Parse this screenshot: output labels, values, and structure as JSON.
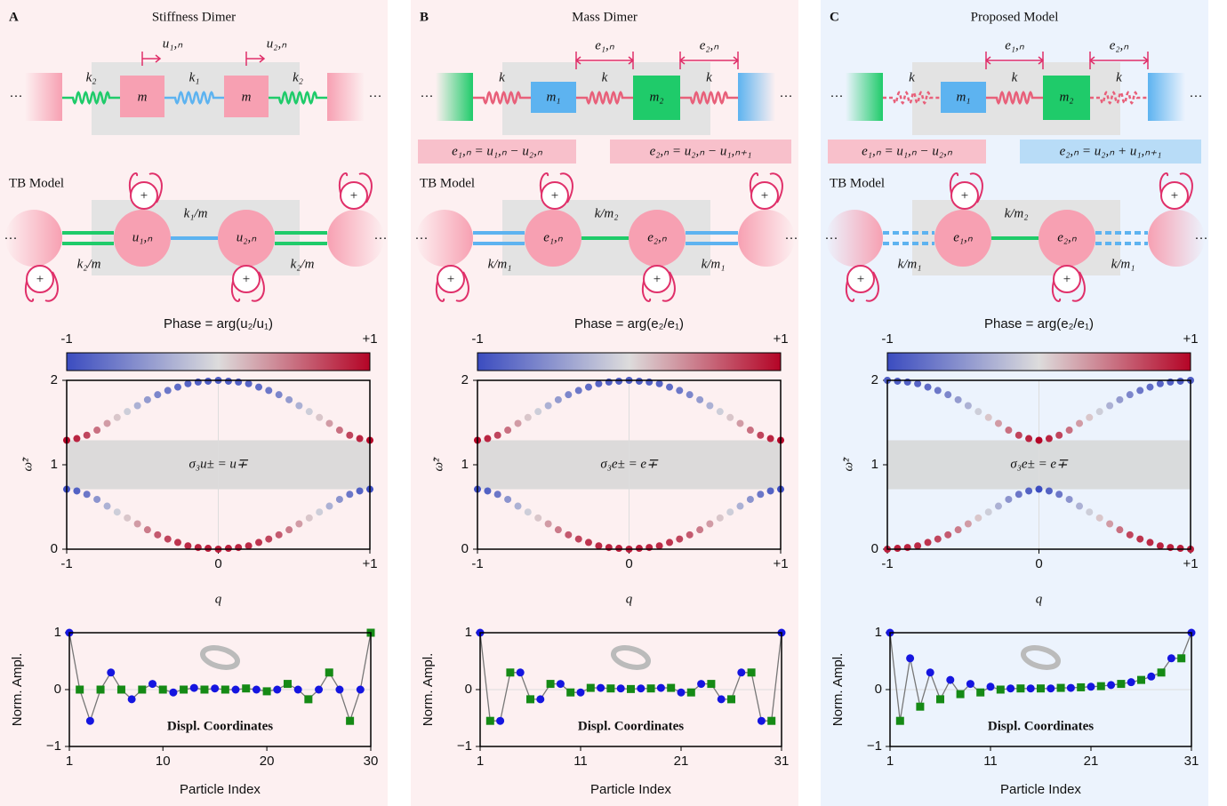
{
  "ellipsis": "···",
  "panels": [
    {
      "letter": "A",
      "title": "Stiffness Dimer",
      "springs": [
        "k₂",
        "k₁",
        "k₂"
      ],
      "masses": [
        "m",
        "m"
      ],
      "arrows": [
        "u₁,ₙ",
        "u₂,ₙ"
      ],
      "tb_label": "TB Model",
      "nodes": [
        "u₁,ₙ",
        "u₂,ₙ"
      ],
      "couplings": [
        "k₁/m",
        "k₂/m",
        "k₂/m"
      ],
      "onsite": [
        "+",
        "+",
        "+",
        "+"
      ]
    },
    {
      "letter": "B",
      "title": "Mass Dimer",
      "springs": [
        "k",
        "k",
        "k"
      ],
      "masses": [
        "m₁",
        "m₂"
      ],
      "arrows": [
        "e₁,ₙ",
        "e₂,ₙ"
      ],
      "equations": [
        "e₁,ₙ = u₁,ₙ − u₂,ₙ",
        "e₂,ₙ = u₂,ₙ − u₁,ₙ₊₁"
      ],
      "tb_label": "TB Model",
      "nodes": [
        "e₁,ₙ",
        "e₂,ₙ"
      ],
      "couplings": [
        "k/m₂",
        "k/m₁",
        "k/m₁"
      ],
      "onsite": [
        "+",
        "+",
        "+",
        "+"
      ]
    },
    {
      "letter": "C",
      "title": "Proposed Model",
      "springs": [
        "k",
        "k",
        "k"
      ],
      "masses": [
        "m₁",
        "m₂"
      ],
      "arrows": [
        "e₁,ₙ",
        "e₂,ₙ"
      ],
      "equations": [
        "e₁,ₙ = u₁,ₙ − u₂,ₙ",
        "e₂,ₙ = u₂,ₙ + u₁,ₙ₊₁"
      ],
      "tb_label": "TB Model",
      "nodes": [
        "e₁,ₙ",
        "e₂,ₙ"
      ],
      "couplings": [
        "k/m₂",
        "k/m₁",
        "k/m₁"
      ],
      "onsite": [
        "+",
        "+",
        "+",
        "+"
      ]
    }
  ],
  "chart_data": [
    {
      "type": "scatter",
      "colorbar_label": "Phase = arg(u₂/u₁)",
      "colorbar_ticks": [
        -1,
        {
          "value": 1,
          "label": "+1"
        }
      ],
      "colormap": [
        "#3b4cc0",
        "#dddcdc",
        "#b40426"
      ],
      "x": [
        -1,
        -0.933,
        -0.867,
        -0.8,
        -0.733,
        -0.667,
        -0.6,
        -0.533,
        -0.467,
        -0.4,
        -0.333,
        -0.267,
        -0.2,
        -0.133,
        -0.067,
        0,
        0.067,
        0.133,
        0.2,
        0.267,
        0.333,
        0.4,
        0.467,
        0.533,
        0.6,
        0.667,
        0.733,
        0.8,
        0.867,
        0.933,
        1
      ],
      "series": [
        {
          "values": [
            1.29,
            1.31,
            1.35,
            1.41,
            1.49,
            1.56,
            1.63,
            1.7,
            1.77,
            1.83,
            1.88,
            1.92,
            1.96,
            1.98,
            1.99,
            2.0,
            1.99,
            1.98,
            1.96,
            1.92,
            1.88,
            1.83,
            1.77,
            1.7,
            1.63,
            1.56,
            1.49,
            1.41,
            1.35,
            1.31,
            1.29
          ],
          "phase": [
            1,
            0.85,
            0.7,
            0.5,
            0.3,
            0.1,
            -0.1,
            -0.3,
            -0.45,
            -0.6,
            -0.7,
            -0.78,
            -0.83,
            -0.86,
            -0.88,
            -0.88,
            -0.88,
            -0.86,
            -0.83,
            -0.78,
            -0.7,
            -0.6,
            -0.45,
            -0.3,
            -0.1,
            0.1,
            0.3,
            0.5,
            0.7,
            0.85,
            1
          ]
        },
        {
          "values": [
            0.71,
            0.69,
            0.65,
            0.59,
            0.51,
            0.44,
            0.37,
            0.3,
            0.23,
            0.17,
            0.12,
            0.08,
            0.04,
            0.02,
            0.01,
            0.0,
            0.01,
            0.02,
            0.04,
            0.08,
            0.12,
            0.17,
            0.23,
            0.3,
            0.37,
            0.44,
            0.51,
            0.59,
            0.65,
            0.69,
            0.71
          ],
          "phase": [
            -1,
            -0.85,
            -0.7,
            -0.5,
            -0.3,
            -0.1,
            0.1,
            0.3,
            0.45,
            0.6,
            0.7,
            0.78,
            0.83,
            0.86,
            0.88,
            0.88,
            0.88,
            0.86,
            0.83,
            0.78,
            0.7,
            0.6,
            0.45,
            0.3,
            0.1,
            -0.1,
            -0.3,
            -0.5,
            -0.7,
            -0.85,
            -1
          ]
        }
      ],
      "band": [
        0.71,
        1.29
      ],
      "annotation": "σ₃u± = u∓",
      "xlim": [
        -1,
        1
      ],
      "ylim": [
        0,
        2
      ],
      "xticks": [
        -1,
        0,
        {
          "value": 1,
          "label": "+1"
        }
      ],
      "yticks": [
        0,
        1,
        2
      ],
      "xlabel": "q",
      "ylabel": "ω̃²",
      "grid": true
    },
    {
      "type": "line",
      "line_color": "#777777",
      "series": [
        {
          "color": "#1515e0",
          "marker": "circle",
          "x": [
            1,
            3,
            5,
            7,
            9,
            11,
            13,
            15,
            17,
            19,
            21,
            23,
            25,
            27,
            29
          ],
          "values": [
            1,
            -0.55,
            0.3,
            -0.17,
            0.1,
            -0.05,
            0.03,
            0.02,
            0,
            0,
            0,
            0,
            0,
            0,
            0
          ]
        },
        {
          "color": "#158a15",
          "marker": "square",
          "x": [
            2,
            4,
            6,
            8,
            10,
            12,
            14,
            16,
            18,
            20,
            22,
            24,
            26,
            28,
            30
          ],
          "values": [
            0,
            0,
            0,
            0,
            0,
            0,
            0,
            0,
            0.02,
            -0.03,
            0.1,
            -0.17,
            0.3,
            -0.55,
            1
          ]
        }
      ],
      "xlim": [
        1,
        30
      ],
      "ylim": [
        -1,
        1
      ],
      "xticks": [
        1,
        10,
        20,
        30
      ],
      "yticks": [
        {
          "value": -1,
          "label": "−1"
        },
        0,
        1
      ],
      "xlabel": "Particle Index",
      "ylabel": "Norm. Ampl.",
      "annotation": "Displ.  Coordinates",
      "grid": true
    },
    {
      "type": "scatter",
      "colorbar_label": "Phase = arg(e₂/e₁)",
      "colorbar_ticks": [
        -1,
        {
          "value": 1,
          "label": "+1"
        }
      ],
      "colormap": [
        "#3b4cc0",
        "#dddcdc",
        "#b40426"
      ],
      "x": [
        -1,
        -0.933,
        -0.867,
        -0.8,
        -0.733,
        -0.667,
        -0.6,
        -0.533,
        -0.467,
        -0.4,
        -0.333,
        -0.267,
        -0.2,
        -0.133,
        -0.067,
        0,
        0.067,
        0.133,
        0.2,
        0.267,
        0.333,
        0.4,
        0.467,
        0.533,
        0.6,
        0.667,
        0.733,
        0.8,
        0.867,
        0.933,
        1
      ],
      "series": [
        {
          "values": [
            1.29,
            1.31,
            1.35,
            1.41,
            1.49,
            1.56,
            1.63,
            1.7,
            1.77,
            1.83,
            1.88,
            1.92,
            1.96,
            1.98,
            1.99,
            2.0,
            1.99,
            1.98,
            1.96,
            1.92,
            1.88,
            1.83,
            1.77,
            1.7,
            1.63,
            1.56,
            1.49,
            1.41,
            1.35,
            1.31,
            1.29
          ],
          "phase": [
            1,
            0.85,
            0.7,
            0.5,
            0.3,
            0.1,
            -0.1,
            -0.3,
            -0.45,
            -0.6,
            -0.7,
            -0.78,
            -0.83,
            -0.86,
            -0.88,
            -0.88,
            -0.88,
            -0.86,
            -0.83,
            -0.78,
            -0.7,
            -0.6,
            -0.45,
            -0.3,
            -0.1,
            0.1,
            0.3,
            0.5,
            0.7,
            0.85,
            1
          ]
        },
        {
          "values": [
            0.71,
            0.69,
            0.65,
            0.59,
            0.51,
            0.44,
            0.37,
            0.3,
            0.23,
            0.17,
            0.12,
            0.08,
            0.04,
            0.02,
            0.01,
            0.0,
            0.01,
            0.02,
            0.04,
            0.08,
            0.12,
            0.17,
            0.23,
            0.3,
            0.37,
            0.44,
            0.51,
            0.59,
            0.65,
            0.69,
            0.71
          ],
          "phase": [
            -1,
            -0.85,
            -0.7,
            -0.5,
            -0.3,
            -0.1,
            0.1,
            0.3,
            0.45,
            0.6,
            0.7,
            0.78,
            0.83,
            0.86,
            0.88,
            0.88,
            0.88,
            0.86,
            0.83,
            0.78,
            0.7,
            0.6,
            0.45,
            0.3,
            0.1,
            -0.1,
            -0.3,
            -0.5,
            -0.7,
            -0.85,
            -1
          ]
        }
      ],
      "band": [
        0.71,
        1.29
      ],
      "annotation": "σ₃e± = e∓",
      "xlim": [
        -1,
        1
      ],
      "ylim": [
        0,
        2
      ],
      "xticks": [
        -1,
        0,
        {
          "value": 1,
          "label": "+1"
        }
      ],
      "yticks": [
        0,
        1,
        2
      ],
      "xlabel": "q",
      "ylabel": "ω̃²",
      "grid": true
    },
    {
      "type": "line",
      "line_color": "#777777",
      "series": [
        {
          "color": "#1515e0",
          "marker": "circle",
          "x": [
            1,
            3,
            5,
            7,
            9,
            11,
            13,
            15,
            17,
            19,
            21,
            23,
            25,
            27,
            29,
            31
          ],
          "values": [
            1,
            -0.55,
            0.3,
            -0.17,
            0.1,
            -0.05,
            0.03,
            0.02,
            0.02,
            0.03,
            -0.05,
            0.1,
            -0.17,
            0.3,
            -0.55,
            1
          ]
        },
        {
          "color": "#158a15",
          "marker": "square",
          "x": [
            2,
            4,
            6,
            8,
            10,
            12,
            14,
            16,
            18,
            20,
            22,
            24,
            26,
            28,
            30
          ],
          "values": [
            -0.55,
            0.3,
            -0.17,
            0.1,
            -0.05,
            0.03,
            0.02,
            0.01,
            0.02,
            0.03,
            -0.05,
            0.1,
            -0.17,
            0.3,
            -0.55
          ]
        }
      ],
      "xlim": [
        1,
        31
      ],
      "ylim": [
        -1,
        1
      ],
      "xticks": [
        1,
        11,
        21,
        31
      ],
      "yticks": [
        {
          "value": -1,
          "label": "−1"
        },
        0,
        1
      ],
      "xlabel": "Particle Index",
      "ylabel": "Norm. Ampl.",
      "annotation": "Displ.  Coordinates",
      "grid": true
    },
    {
      "type": "scatter",
      "colorbar_label": "Phase = arg(e₂/e₁)",
      "colorbar_ticks": [
        -1,
        {
          "value": 1,
          "label": "+1"
        }
      ],
      "colormap": [
        "#3b4cc0",
        "#dddcdc",
        "#b40426"
      ],
      "x": [
        -1,
        -0.933,
        -0.867,
        -0.8,
        -0.733,
        -0.667,
        -0.6,
        -0.533,
        -0.467,
        -0.4,
        -0.333,
        -0.267,
        -0.2,
        -0.133,
        -0.067,
        0,
        0.067,
        0.133,
        0.2,
        0.267,
        0.333,
        0.4,
        0.467,
        0.533,
        0.6,
        0.667,
        0.733,
        0.8,
        0.867,
        0.933,
        1
      ],
      "series": [
        {
          "values": [
            2.0,
            1.99,
            1.98,
            1.96,
            1.92,
            1.88,
            1.83,
            1.77,
            1.7,
            1.63,
            1.56,
            1.49,
            1.41,
            1.35,
            1.31,
            1.29,
            1.31,
            1.35,
            1.41,
            1.49,
            1.56,
            1.63,
            1.7,
            1.77,
            1.83,
            1.88,
            1.92,
            1.96,
            1.98,
            1.99,
            2.0
          ],
          "phase": [
            -0.88,
            -0.88,
            -0.86,
            -0.83,
            -0.78,
            -0.7,
            -0.6,
            -0.45,
            -0.3,
            -0.1,
            0.1,
            0.3,
            0.5,
            0.7,
            0.85,
            1,
            0.85,
            0.7,
            0.5,
            0.3,
            0.1,
            -0.1,
            -0.3,
            -0.45,
            -0.6,
            -0.7,
            -0.78,
            -0.83,
            -0.86,
            -0.88,
            -0.88
          ]
        },
        {
          "values": [
            0.0,
            0.01,
            0.02,
            0.04,
            0.08,
            0.12,
            0.17,
            0.23,
            0.3,
            0.37,
            0.44,
            0.51,
            0.59,
            0.65,
            0.69,
            0.71,
            0.69,
            0.65,
            0.59,
            0.51,
            0.44,
            0.37,
            0.3,
            0.23,
            0.17,
            0.12,
            0.08,
            0.04,
            0.02,
            0.01,
            0.0
          ],
          "phase": [
            0.88,
            0.88,
            0.86,
            0.83,
            0.78,
            0.7,
            0.6,
            0.45,
            0.3,
            0.1,
            -0.1,
            -0.3,
            -0.5,
            -0.7,
            -0.85,
            -1,
            -0.85,
            -0.7,
            -0.5,
            -0.3,
            -0.1,
            0.1,
            0.3,
            0.5,
            0.7,
            0.78,
            0.83,
            0.86,
            0.88,
            0.88,
            0.88
          ]
        }
      ],
      "band": [
        0.71,
        1.29
      ],
      "annotation": "σ₃e± = e∓",
      "xlim": [
        -1,
        1
      ],
      "ylim": [
        0,
        2
      ],
      "xticks": [
        -1,
        0,
        {
          "value": 1,
          "label": "+1"
        }
      ],
      "yticks": [
        0,
        1,
        2
      ],
      "xlabel": "q",
      "ylabel": "ω̃²",
      "grid": true
    },
    {
      "type": "line",
      "line_color": "#777777",
      "series": [
        {
          "color": "#1515e0",
          "marker": "circle",
          "x": [
            1,
            3,
            5,
            7,
            9,
            11,
            13,
            15,
            17,
            19,
            21,
            23,
            25,
            27,
            29,
            31
          ],
          "values": [
            1,
            0.55,
            0.3,
            0.17,
            0.1,
            0.05,
            0.02,
            0.02,
            0.02,
            0.03,
            0.05,
            0.08,
            0.13,
            0.23,
            0.55,
            1
          ]
        },
        {
          "color": "#158a15",
          "marker": "square",
          "x": [
            2,
            4,
            6,
            8,
            10,
            12,
            14,
            16,
            18,
            20,
            22,
            24,
            26,
            28,
            30
          ],
          "values": [
            -0.55,
            -0.3,
            -0.17,
            -0.08,
            -0.05,
            0,
            0.02,
            0.02,
            0.03,
            0.04,
            0.06,
            0.1,
            0.17,
            0.3,
            0.55
          ]
        }
      ],
      "xlim": [
        1,
        31
      ],
      "ylim": [
        -1,
        1
      ],
      "xticks": [
        1,
        11,
        21,
        31
      ],
      "yticks": [
        {
          "value": -1,
          "label": "−1"
        },
        0,
        1
      ],
      "xlabel": "Particle Index",
      "ylabel": "Norm. Ampl.",
      "annotation": "Displ.  Coordinates",
      "grid": true
    }
  ]
}
